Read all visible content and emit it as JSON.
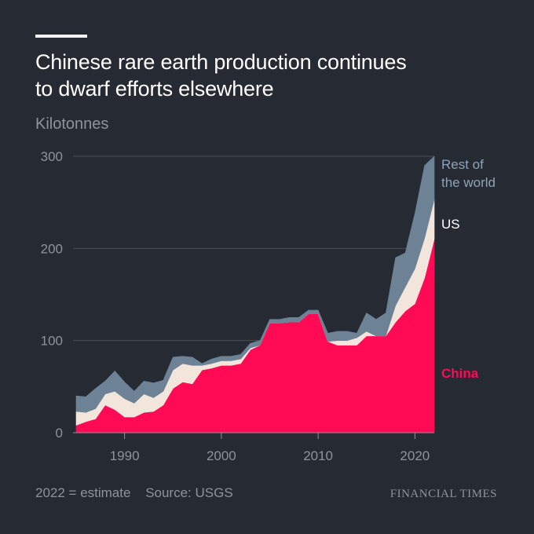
{
  "header": {
    "title_line1": "Chinese rare earth production continues",
    "title_line2": "to dwarf efforts elsewhere",
    "unit": "Kilotonnes"
  },
  "footer": {
    "note": "2022 = estimate",
    "source": "Source: USGS",
    "brand": "FINANCIAL TIMES"
  },
  "colors": {
    "background": "#262a33",
    "china": "#ff0a55",
    "us": "#f2e6dc",
    "rest": "#6e8296",
    "grid": "#4a4e57"
  },
  "chart_data": {
    "type": "area",
    "stacked": true,
    "title": "Chinese rare earth production continues to dwarf efforts elsewhere",
    "ylabel": "Kilotonnes",
    "xlim": [
      1985,
      2022
    ],
    "ylim": [
      0,
      300
    ],
    "x_ticks": [
      1990,
      2000,
      2010,
      2020
    ],
    "y_ticks": [
      0,
      100,
      200,
      300
    ],
    "x": [
      1985,
      1986,
      1987,
      1988,
      1989,
      1990,
      1991,
      1992,
      1993,
      1994,
      1995,
      1996,
      1997,
      1998,
      1999,
      2000,
      2001,
      2002,
      2003,
      2004,
      2005,
      2006,
      2007,
      2008,
      2009,
      2010,
      2011,
      2012,
      2013,
      2014,
      2015,
      2016,
      2017,
      2018,
      2019,
      2020,
      2021,
      2022
    ],
    "series": [
      {
        "name": "China",
        "label": "China",
        "values": [
          8,
          12,
          15,
          30,
          25,
          17,
          17,
          22,
          23,
          30,
          48,
          55,
          53,
          68,
          70,
          73,
          73,
          75,
          90,
          95,
          119,
          119,
          120,
          120,
          129,
          129,
          99,
          95,
          95,
          95,
          105,
          105,
          105,
          120,
          132,
          140,
          168,
          210
        ]
      },
      {
        "name": "US",
        "label": "US",
        "values": [
          15,
          10,
          11,
          12,
          20,
          20,
          15,
          20,
          15,
          15,
          20,
          20,
          20,
          5,
          5,
          5,
          5,
          5,
          2,
          0,
          0,
          0,
          0,
          0,
          0,
          0,
          0,
          5,
          5,
          8,
          5,
          0,
          0,
          18,
          26,
          38,
          43,
          43
        ]
      },
      {
        "name": "Rest of the world",
        "label": "Rest of\nthe world",
        "values": [
          17,
          17,
          22,
          14,
          22,
          18,
          13,
          14,
          16,
          12,
          14,
          8,
          9,
          2,
          5,
          5,
          5,
          5,
          5,
          5,
          4,
          4,
          5,
          5,
          4,
          4,
          9,
          10,
          10,
          5,
          20,
          18,
          25,
          52,
          37,
          60,
          79,
          47
        ]
      }
    ]
  }
}
